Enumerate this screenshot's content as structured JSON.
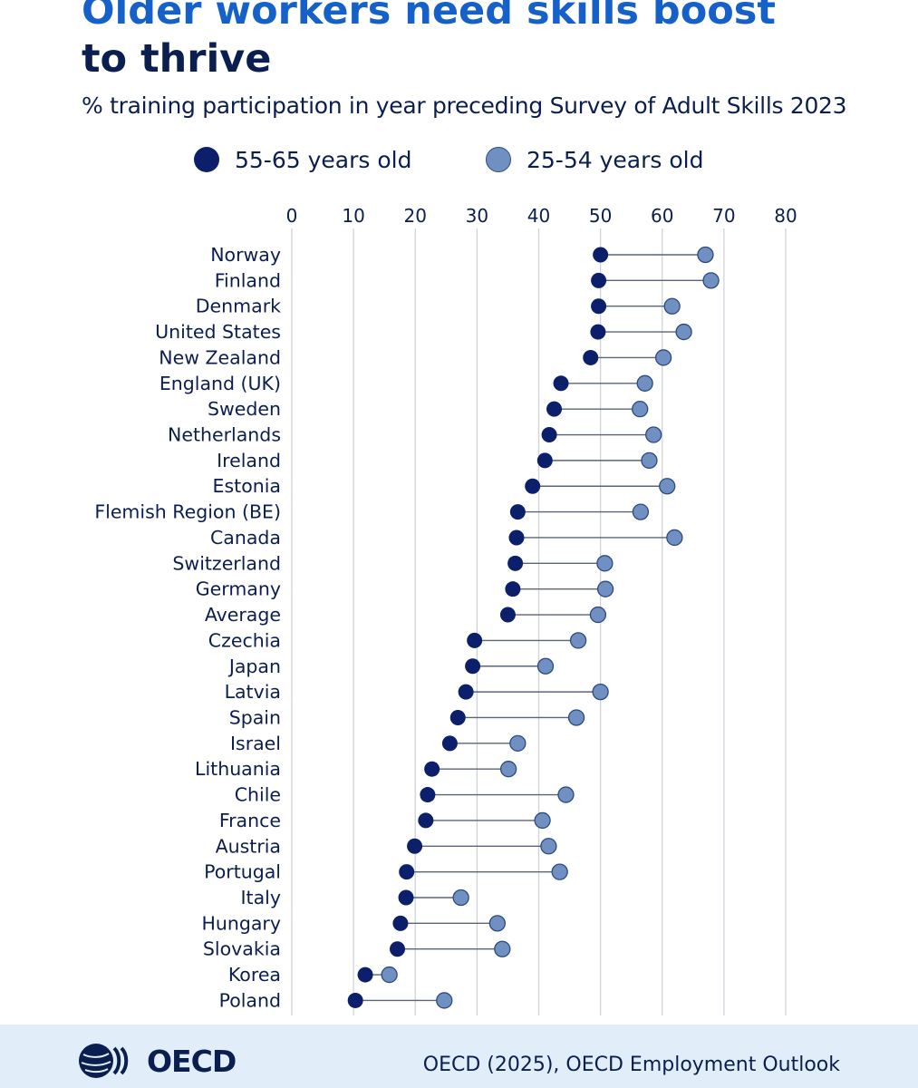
{
  "header": {
    "title_line1": "Older workers need skills boost",
    "title_line2": "to thrive",
    "subtitle": "% training participation in year preceding Survey of Adult Skills 2023"
  },
  "legend": {
    "older_label": "55-65 years old",
    "younger_label": "25-54 years old"
  },
  "colors": {
    "older": "#0b1f6b",
    "younger": "#7190c2",
    "younger_stroke": "#2c4a80",
    "connector": "#5a6478",
    "grid": "#cfd3d9",
    "text": "#0b1e50",
    "footer_bg": "#e1eef9",
    "title_accent": "#1560c9"
  },
  "chart_data": {
    "type": "dumbbell",
    "title": "Older workers need skills boost to thrive",
    "subtitle": "% training participation in year preceding Survey of Adult Skills 2023",
    "xlim": [
      0,
      80
    ],
    "xticks": [
      0,
      10,
      20,
      30,
      40,
      50,
      60,
      70,
      80
    ],
    "grid": true,
    "legend_position": "top",
    "series": [
      {
        "name": "55-65 years old",
        "key": "older"
      },
      {
        "name": "25-54 years old",
        "key": "younger"
      }
    ],
    "rows": [
      {
        "country": "Norway",
        "older": 50,
        "younger": 67
      },
      {
        "country": "Finland",
        "older": 49.7,
        "younger": 67.9
      },
      {
        "country": "Denmark",
        "older": 49.7,
        "younger": 61.6
      },
      {
        "country": "United States",
        "older": 49.6,
        "younger": 63.5
      },
      {
        "country": "New Zealand",
        "older": 48.4,
        "younger": 60.2
      },
      {
        "country": "England (UK)",
        "older": 43.6,
        "younger": 57.2
      },
      {
        "country": "Sweden",
        "older": 42.5,
        "younger": 56.4
      },
      {
        "country": "Netherlands",
        "older": 41.7,
        "younger": 58.6
      },
      {
        "country": "Ireland",
        "older": 41,
        "younger": 57.9
      },
      {
        "country": "Estonia",
        "older": 39,
        "younger": 60.8
      },
      {
        "country": "Flemish Region (BE)",
        "older": 36.6,
        "younger": 56.5
      },
      {
        "country": "Canada",
        "older": 36.4,
        "younger": 62
      },
      {
        "country": "Switzerland",
        "older": 36.2,
        "younger": 50.7
      },
      {
        "country": "Germany",
        "older": 35.8,
        "younger": 50.8
      },
      {
        "country": "Average",
        "older": 35,
        "younger": 49.6
      },
      {
        "country": "Czechia",
        "older": 29.6,
        "younger": 46.4
      },
      {
        "country": "Japan",
        "older": 29.3,
        "younger": 41.1
      },
      {
        "country": "Latvia",
        "older": 28.2,
        "younger": 50
      },
      {
        "country": "Spain",
        "older": 26.9,
        "younger": 46.1
      },
      {
        "country": "Israel",
        "older": 25.6,
        "younger": 36.6
      },
      {
        "country": "Lithuania",
        "older": 22.7,
        "younger": 35.1
      },
      {
        "country": "Chile",
        "older": 22,
        "younger": 44.4
      },
      {
        "country": "France",
        "older": 21.7,
        "younger": 40.6
      },
      {
        "country": "Austria",
        "older": 19.9,
        "younger": 41.6
      },
      {
        "country": "Portugal",
        "older": 18.6,
        "younger": 43.4
      },
      {
        "country": "Italy",
        "older": 18.5,
        "younger": 27.4
      },
      {
        "country": "Hungary",
        "older": 17.6,
        "younger": 33.3
      },
      {
        "country": "Slovakia",
        "older": 17.1,
        "younger": 34.1
      },
      {
        "country": "Korea",
        "older": 11.9,
        "younger": 15.8
      },
      {
        "country": "Poland",
        "older": 10.3,
        "younger": 24.7
      }
    ]
  },
  "footer": {
    "logo_text": "OECD",
    "source": "OECD (2025), OECD Employment Outlook"
  }
}
